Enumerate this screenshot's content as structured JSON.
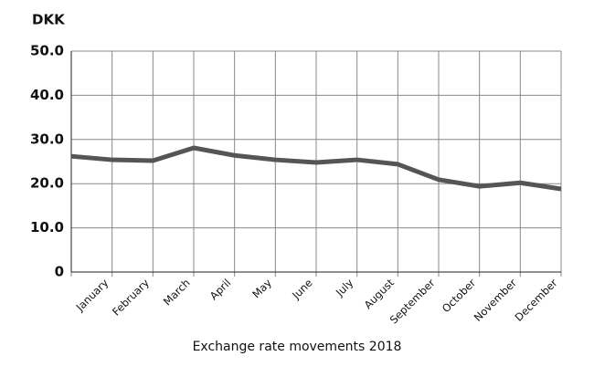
{
  "chart_data": {
    "type": "line",
    "y_label": "DKK",
    "x_label": "Exchange rate movements 2018",
    "categories": [
      null,
      "January",
      "February",
      "March",
      "April",
      "May",
      "June",
      "July",
      "August",
      "September",
      "October",
      "November",
      "December"
    ],
    "values": [
      26.2,
      25.4,
      25.2,
      28.1,
      26.4,
      25.4,
      24.8,
      25.4,
      24.4,
      20.9,
      19.4,
      20.2,
      18.8
    ],
    "color": "#555555",
    "ylim": [
      0,
      50
    ],
    "yticks": [
      0,
      {
        "value": 10,
        "label": "10.0"
      },
      {
        "value": 20,
        "label": "20.0"
      },
      {
        "value": 30,
        "label": "30.0"
      },
      {
        "value": 40,
        "label": "40.0"
      },
      {
        "value": 50,
        "label": "50.0"
      }
    ],
    "grid": true
  }
}
